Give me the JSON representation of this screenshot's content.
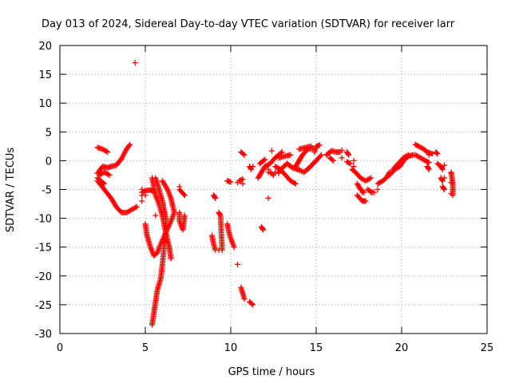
{
  "chart_data": {
    "type": "scatter",
    "title": "Day 013 of 2024, Sidereal Day-to-day VTEC variation (SDTVAR) for receiver larr",
    "xlabel": "GPS time / hours",
    "ylabel": "SDTVAR / TECUs",
    "xlim": [
      0,
      25
    ],
    "ylim": [
      -30,
      20
    ],
    "xticks": [
      0,
      5,
      10,
      15,
      20,
      25
    ],
    "yticks": [
      -30,
      -25,
      -20,
      -15,
      -10,
      -5,
      0,
      5,
      10,
      15,
      20
    ],
    "grid": true,
    "marker": "plus",
    "color": "#ff0000",
    "segments": [
      [
        [
          2.2,
          2.3
        ],
        [
          2.5,
          2.0
        ],
        [
          2.8,
          1.5
        ]
      ],
      [
        [
          2.2,
          -2.2
        ],
        [
          2.5,
          -1.0
        ],
        [
          2.8,
          -1.2
        ],
        [
          3.0,
          -1.0
        ],
        [
          3.3,
          -0.8
        ],
        [
          3.6,
          0.3
        ],
        [
          3.9,
          2.0
        ],
        [
          4.1,
          2.8
        ]
      ],
      [
        [
          2.2,
          -3.5
        ],
        [
          2.6,
          -5.0
        ],
        [
          3.0,
          -6.5
        ],
        [
          3.3,
          -8.0
        ],
        [
          3.6,
          -9.0
        ],
        [
          3.9,
          -9.0
        ],
        [
          4.2,
          -8.5
        ],
        [
          4.5,
          -8.0
        ]
      ],
      [
        [
          2.3,
          -2.5
        ],
        [
          2.6,
          -2.0
        ],
        [
          2.9,
          -2.5
        ]
      ],
      [
        [
          2.2,
          -3.0
        ],
        [
          2.6,
          -4.0
        ]
      ],
      [
        [
          4.8,
          -5.5
        ],
        [
          5.0,
          -5.2
        ],
        [
          5.3,
          -5.1
        ],
        [
          5.5,
          -5.3
        ]
      ],
      [
        [
          5.0,
          -11.0
        ],
        [
          5.1,
          -13.0
        ],
        [
          5.3,
          -15.0
        ],
        [
          5.5,
          -16.5
        ],
        [
          5.7,
          -16.0
        ],
        [
          5.9,
          -14.5
        ],
        [
          6.2,
          -12.5
        ],
        [
          6.5,
          -10.5
        ],
        [
          6.7,
          -9.0
        ],
        [
          6.5,
          -6.5
        ],
        [
          6.3,
          -5.0
        ],
        [
          6.0,
          -3.5
        ]
      ],
      [
        [
          5.6,
          -3.0
        ],
        [
          5.8,
          -5.0
        ],
        [
          6.0,
          -7.0
        ],
        [
          6.2,
          -10.0
        ],
        [
          6.2,
          -12.0
        ],
        [
          6.1,
          -15.0
        ],
        [
          6.0,
          -18.0
        ],
        [
          5.9,
          -20.5
        ],
        [
          5.7,
          -22.5
        ],
        [
          5.6,
          -24.5
        ],
        [
          5.5,
          -26.5
        ],
        [
          5.4,
          -28.5
        ]
      ],
      [
        [
          5.4,
          -3.0
        ],
        [
          5.5,
          -4.5
        ],
        [
          5.6,
          -6.0
        ],
        [
          5.8,
          -7.5
        ],
        [
          6.0,
          -9.5
        ],
        [
          6.2,
          -12.5
        ],
        [
          6.4,
          -15.0
        ],
        [
          6.5,
          -17.0
        ]
      ],
      [
        [
          7.0,
          -5.0
        ],
        [
          7.3,
          -6.0
        ]
      ],
      [
        [
          7.0,
          -9.0
        ],
        [
          7.0,
          -10.5
        ],
        [
          7.2,
          -12.0
        ],
        [
          7.3,
          -9.5
        ]
      ],
      [
        [
          9.0,
          -6.0
        ],
        [
          9.1,
          -6.5
        ]
      ],
      [
        [
          8.9,
          -13.0
        ],
        [
          9.0,
          -14.5
        ],
        [
          9.1,
          -15.5
        ]
      ],
      [
        [
          9.3,
          -9.0
        ],
        [
          9.4,
          -9.5
        ],
        [
          9.5,
          -15.5
        ]
      ],
      [
        [
          9.8,
          -3.5
        ],
        [
          10.0,
          -3.7
        ]
      ],
      [
        [
          9.8,
          -11.0
        ],
        [
          9.9,
          -12.5
        ],
        [
          10.0,
          -13.5
        ],
        [
          10.2,
          -15.0
        ]
      ],
      [
        [
          10.4,
          -18.0
        ]
      ],
      [
        [
          10.5,
          -3.5
        ],
        [
          10.7,
          -3.2
        ]
      ],
      [
        [
          10.6,
          -22.0
        ],
        [
          10.7,
          -23.0
        ],
        [
          10.8,
          -24.0
        ]
      ],
      [
        [
          10.6,
          1.5
        ],
        [
          10.8,
          1.0
        ]
      ],
      [
        [
          11.1,
          -1.0
        ],
        [
          11.2,
          -1.5
        ]
      ],
      [
        [
          11.1,
          -24.5
        ],
        [
          11.3,
          -25.0
        ]
      ],
      [
        [
          11.6,
          -3.0
        ],
        [
          11.8,
          -2.0
        ],
        [
          12.0,
          -1.0
        ],
        [
          12.3,
          -0.5
        ],
        [
          12.6,
          0.5
        ],
        [
          12.8,
          1.0
        ],
        [
          13.0,
          1.5
        ]
      ],
      [
        [
          11.8,
          -11.5
        ],
        [
          11.9,
          -12.0
        ]
      ],
      [
        [
          11.7,
          -0.5
        ],
        [
          12.0,
          0.2
        ]
      ],
      [
        [
          12.3,
          -2.0
        ],
        [
          12.5,
          -2.5
        ]
      ],
      [
        [
          12.2,
          -6.5
        ]
      ],
      [
        [
          12.6,
          -1.0
        ],
        [
          12.9,
          -1.5
        ],
        [
          13.2,
          -2.5
        ],
        [
          13.5,
          -3.5
        ],
        [
          13.8,
          -4.0
        ]
      ],
      [
        [
          12.8,
          -2.0
        ],
        [
          13.1,
          -1.0
        ],
        [
          13.3,
          -0.5
        ],
        [
          13.6,
          -1.2
        ],
        [
          13.9,
          -1.5
        ]
      ],
      [
        [
          12.8,
          0.5
        ],
        [
          13.2,
          0.8
        ],
        [
          13.5,
          1.0
        ]
      ],
      [
        [
          13.8,
          -1.0
        ],
        [
          14.0,
          0.0
        ],
        [
          14.2,
          1.0
        ],
        [
          14.5,
          2.0
        ],
        [
          14.8,
          2.2
        ]
      ],
      [
        [
          13.9,
          -1.5
        ],
        [
          14.3,
          -2.0
        ],
        [
          14.6,
          -1.2
        ],
        [
          15.0,
          0.0
        ],
        [
          15.3,
          1.0
        ]
      ],
      [
        [
          14.0,
          2.0
        ],
        [
          14.4,
          2.3
        ],
        [
          14.7,
          2.5
        ]
      ],
      [
        [
          14.9,
          1.5
        ],
        [
          15.0,
          2.5
        ],
        [
          15.2,
          2.7
        ]
      ],
      [
        [
          15.6,
          1.0
        ],
        [
          15.9,
          1.7
        ],
        [
          16.2,
          1.5
        ],
        [
          16.4,
          1.5
        ]
      ],
      [
        [
          15.8,
          0.5
        ],
        [
          16.0,
          0.0
        ]
      ],
      [
        [
          16.8,
          1.5
        ],
        [
          16.9,
          1.0
        ]
      ],
      [
        [
          16.8,
          -0.2
        ],
        [
          17.0,
          -0.5
        ]
      ],
      [
        [
          17.1,
          -1.5
        ],
        [
          17.3,
          -2.0
        ],
        [
          17.6,
          -3.0
        ],
        [
          17.9,
          -3.5
        ],
        [
          18.2,
          -3.0
        ]
      ],
      [
        [
          17.4,
          -4.0
        ],
        [
          17.6,
          -5.0
        ],
        [
          17.8,
          -5.5
        ]
      ],
      [
        [
          17.4,
          -6.0
        ],
        [
          17.7,
          -7.0
        ],
        [
          17.9,
          -7.0
        ]
      ],
      [
        [
          18.0,
          -5.0
        ],
        [
          18.3,
          -5.5
        ]
      ],
      [
        [
          18.6,
          -4.0
        ],
        [
          18.9,
          -3.5
        ],
        [
          19.1,
          -3.0
        ],
        [
          19.3,
          -2.0
        ]
      ],
      [
        [
          19.3,
          -2.5
        ],
        [
          19.6,
          -1.5
        ],
        [
          19.9,
          -1.0
        ],
        [
          20.1,
          0.0
        ],
        [
          20.4,
          0.8
        ],
        [
          20.7,
          1.0
        ]
      ],
      [
        [
          19.5,
          -1.5
        ],
        [
          19.8,
          -0.5
        ],
        [
          20.1,
          0.5
        ],
        [
          20.4,
          1.0
        ]
      ],
      [
        [
          20.8,
          2.8
        ],
        [
          21.0,
          2.5
        ],
        [
          21.3,
          2.0
        ],
        [
          21.5,
          1.5
        ],
        [
          21.8,
          1.2
        ]
      ],
      [
        [
          20.8,
          1.0
        ],
        [
          21.1,
          0.5
        ],
        [
          21.4,
          0.0
        ],
        [
          21.6,
          -0.3
        ]
      ],
      [
        [
          21.5,
          -1.0
        ],
        [
          21.6,
          -1.5
        ]
      ],
      [
        [
          22.0,
          1.5
        ],
        [
          22.1,
          1.2
        ]
      ],
      [
        [
          22.1,
          -0.5
        ],
        [
          22.3,
          -1.0
        ],
        [
          22.4,
          -1.5
        ]
      ],
      [
        [
          22.3,
          -3.0
        ],
        [
          22.4,
          -3.5
        ]
      ],
      [
        [
          22.4,
          -4.5
        ],
        [
          22.5,
          -5.0
        ]
      ],
      [
        [
          22.9,
          -2.0
        ],
        [
          23.0,
          -4.0
        ],
        [
          23.0,
          -5.5
        ],
        [
          23.0,
          -6.0
        ]
      ]
    ],
    "points": [
      [
        4.4,
        17.0
      ],
      [
        4.8,
        -5.0
      ],
      [
        4.8,
        -6.0
      ],
      [
        4.8,
        -7.0
      ],
      [
        5.0,
        -6.0
      ],
      [
        5.6,
        -5.5
      ],
      [
        5.6,
        -9.5
      ],
      [
        7.0,
        -4.5
      ],
      [
        7.3,
        -6.0
      ],
      [
        9.1,
        -6.5
      ],
      [
        9.3,
        -15.5
      ],
      [
        10.4,
        -3.8
      ],
      [
        10.7,
        -4.0
      ],
      [
        11.3,
        -1.0
      ],
      [
        12.2,
        -1.5
      ],
      [
        12.2,
        -2.0
      ],
      [
        12.4,
        1.7
      ],
      [
        12.6,
        -2.0
      ],
      [
        12.8,
        -2.2
      ],
      [
        14.0,
        -1.5
      ],
      [
        16.5,
        1.8
      ],
      [
        16.5,
        0.5
      ],
      [
        17.2,
        0.0
      ],
      [
        17.2,
        -1.0
      ],
      [
        17.7,
        -5.5
      ],
      [
        18.2,
        -5.5
      ],
      [
        18.4,
        -5.5
      ],
      [
        18.6,
        -5.0
      ],
      [
        21.6,
        1.0
      ],
      [
        22.5,
        -0.8
      ],
      [
        22.5,
        -3.0
      ],
      [
        22.9,
        -2.2
      ],
      [
        22.9,
        -3.8
      ],
      [
        22.9,
        -5.7
      ]
    ]
  }
}
